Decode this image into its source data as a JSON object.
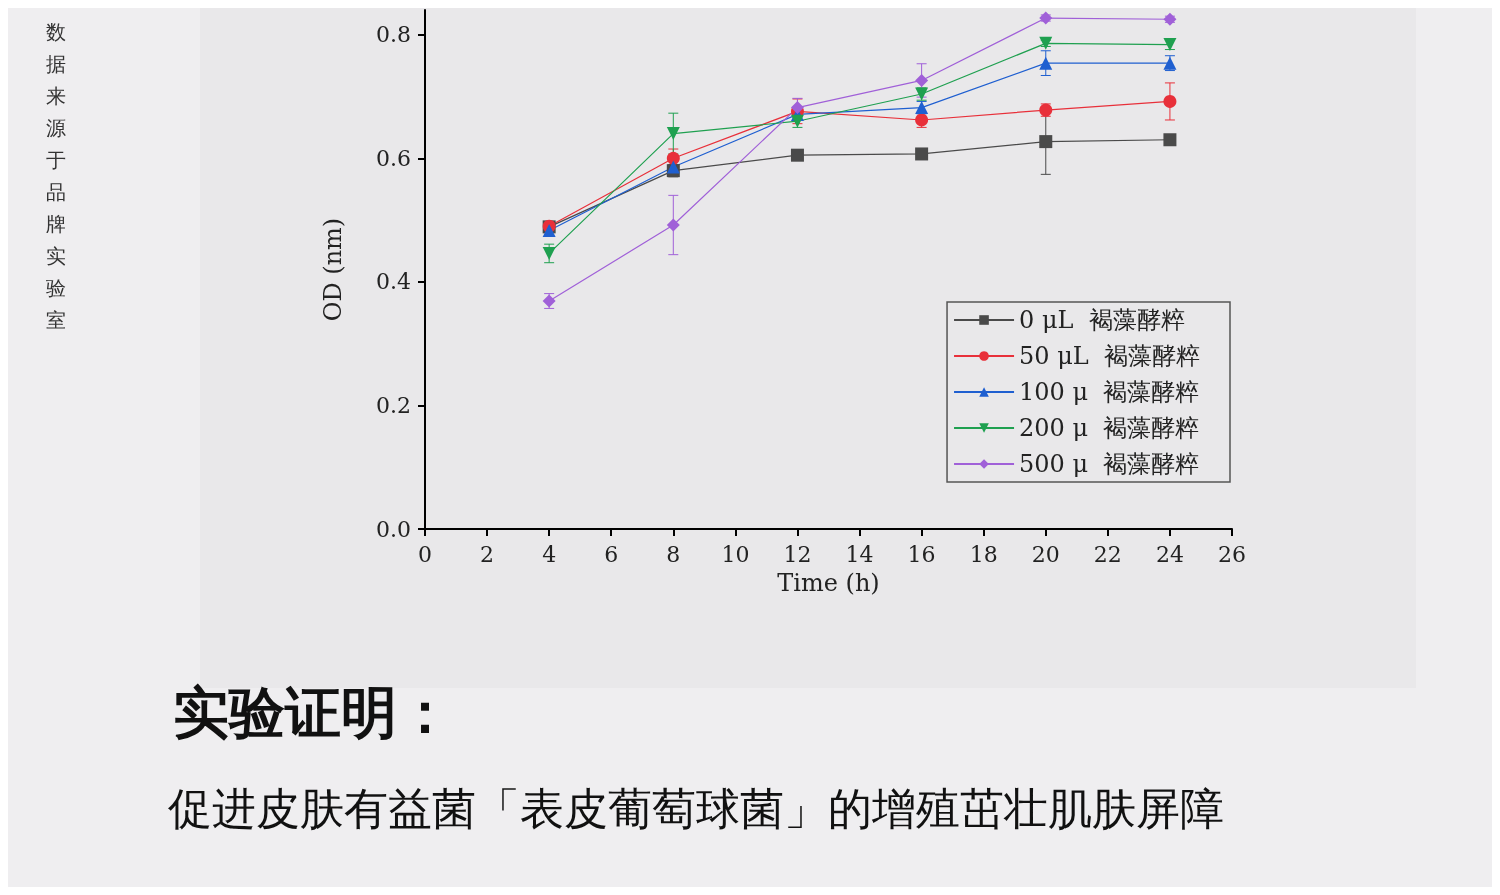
{
  "chart_data": {
    "type": "line",
    "xlabel": "Time (h)",
    "ylabel": "OD (nm)",
    "xlim": [
      0,
      26
    ],
    "xticks": [
      0,
      2,
      4,
      6,
      8,
      10,
      12,
      14,
      16,
      18,
      20,
      22,
      24,
      26
    ],
    "ylim": [
      0,
      0.84
    ],
    "yticks": [
      {
        "value": 0,
        "label": "0.0"
      },
      {
        "value": 0.2,
        "label": "0.2"
      },
      {
        "value": 0.4,
        "label": "0.4"
      },
      {
        "value": 0.6,
        "label": "0.6"
      },
      {
        "value": 0.8,
        "label": "0.8"
      }
    ],
    "x": [
      4,
      8,
      12,
      16,
      20,
      24
    ],
    "series": [
      {
        "name": "0 μL  褐藻酵粹",
        "color": "#4a4a4a",
        "marker": "square",
        "values": [
          0.489,
          0.58,
          0.605,
          0.607,
          0.627,
          0.63
        ],
        "errors": [
          null,
          0.01,
          0.005,
          0.005,
          0.053,
          0.005
        ]
      },
      {
        "name": "50 μL  褐藻酵粹",
        "color": "#e8303a",
        "marker": "circle",
        "values": [
          0.49,
          0.6,
          0.676,
          0.662,
          0.678,
          0.692
        ],
        "errors": [
          null,
          0.015,
          0.02,
          0.012,
          0.01,
          0.03
        ]
      },
      {
        "name": "100 μ  褐藻酵粹",
        "color": "#1f5fd0",
        "marker": "triangle",
        "values": [
          0.483,
          0.586,
          0.671,
          0.682,
          0.754,
          0.754
        ],
        "errors": [
          0.008,
          0.01,
          null,
          0.01,
          0.02,
          0.012
        ]
      },
      {
        "name": "200 μ  褐藻酵粹",
        "color": "#1fa050",
        "marker": "triangle-down",
        "values": [
          0.446,
          0.64,
          0.66,
          0.704,
          0.786,
          0.784
        ],
        "errors": [
          0.015,
          0.033,
          0.01,
          0.01,
          0.005,
          0.008
        ]
      },
      {
        "name": "500 μ  褐藻酵粹",
        "color": "#a060d8",
        "marker": "diamond",
        "values": [
          0.369,
          0.492,
          0.682,
          0.726,
          0.827,
          0.825
        ],
        "errors": [
          0.012,
          0.048,
          0.015,
          0.027,
          0.005,
          0.005
        ]
      }
    ],
    "legend": "bottom right",
    "grid": false,
    "annotations": [
      "数据来源于品牌实验室",
      "实验证明：",
      "促进皮肤有益菌「表皮葡萄球菌」的增殖茁壮肌肤屏障"
    ]
  }
}
